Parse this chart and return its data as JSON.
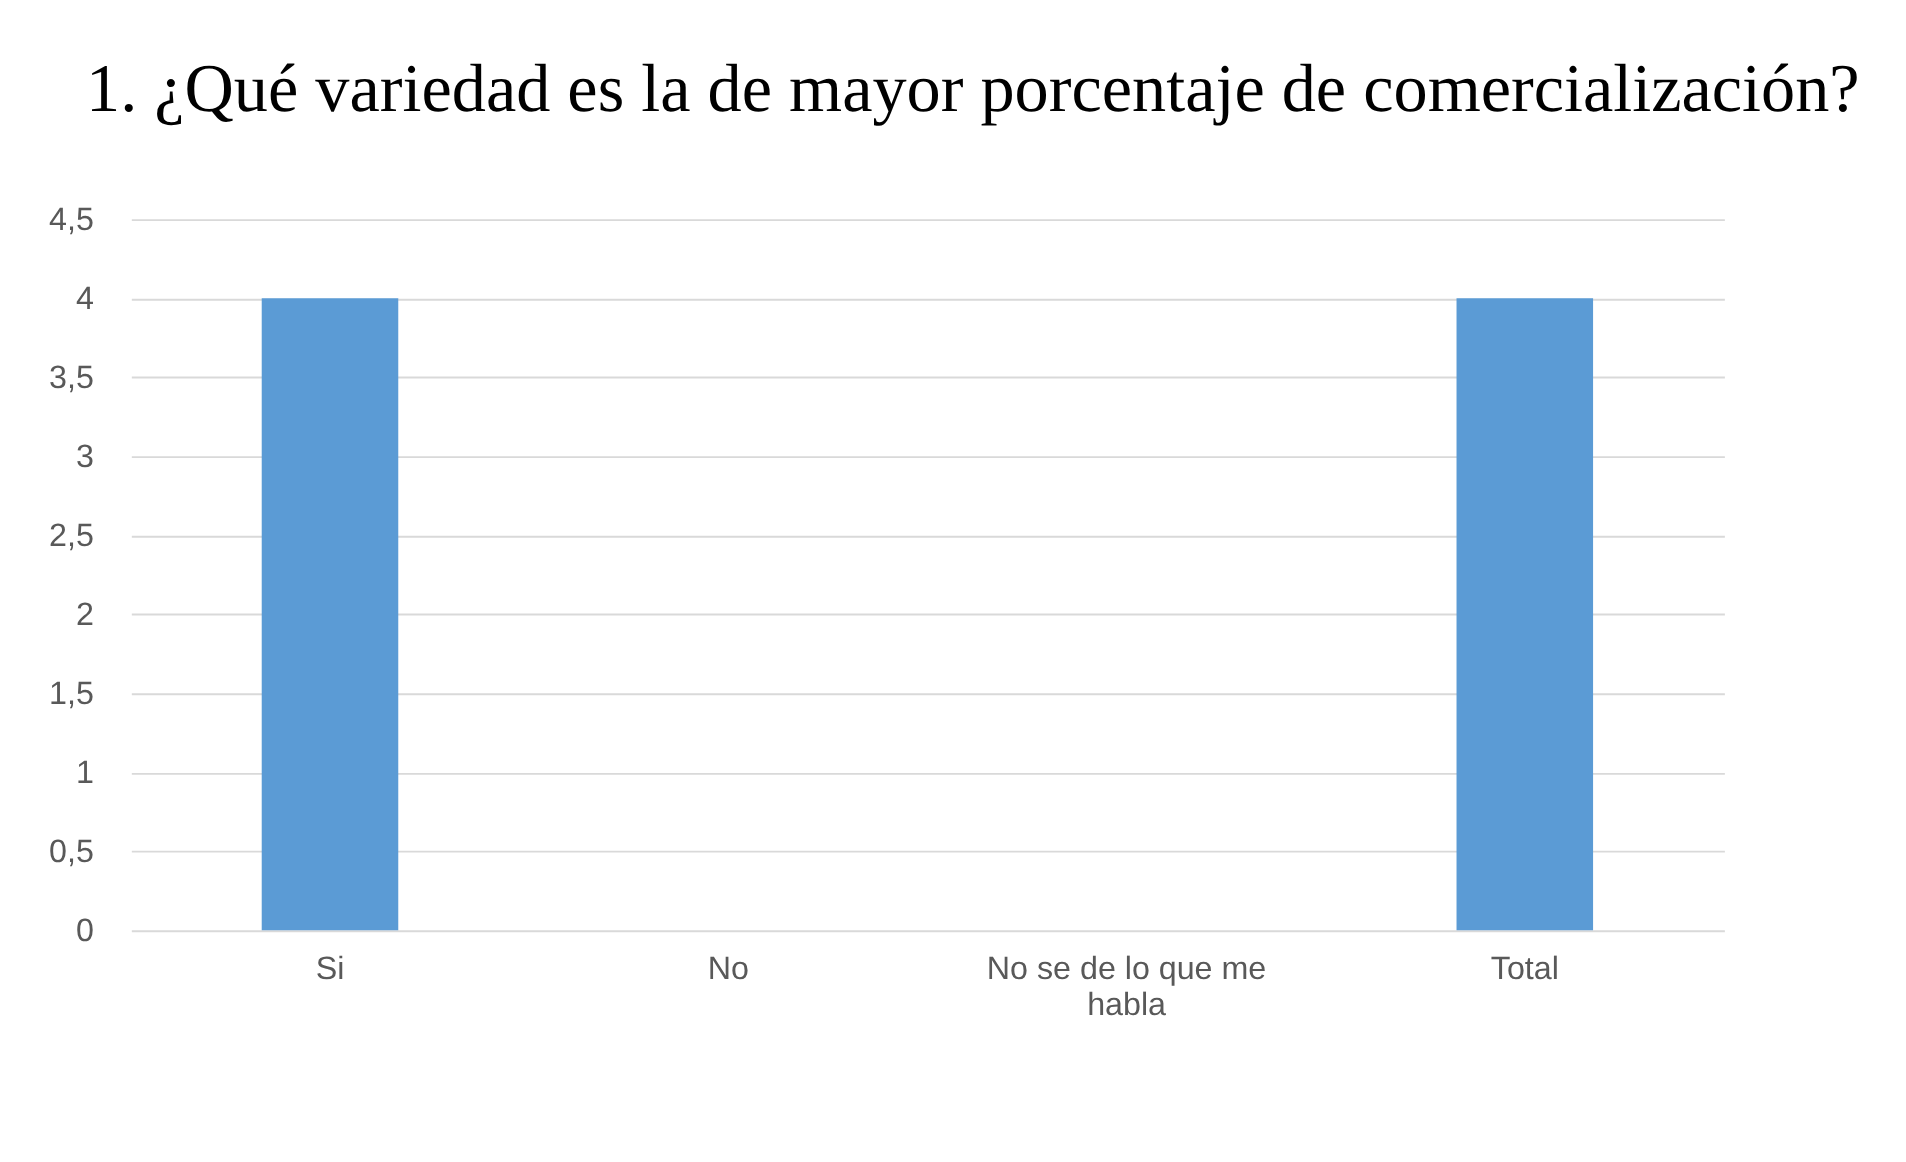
{
  "chart_data": {
    "type": "bar",
    "title": "1.  ¿Qué variedad es la de mayor porcentaje de comercialización?",
    "categories": [
      "Si",
      "No",
      "No se de lo que me habla",
      "Total"
    ],
    "values": [
      4,
      0,
      0,
      4
    ],
    "color": "#5b9bd5",
    "ylim": [
      0,
      4.5
    ],
    "yticks": [
      {
        "value": 0,
        "label": "0"
      },
      {
        "value": 0.5,
        "label": "0,5"
      },
      {
        "value": 1,
        "label": "1"
      },
      {
        "value": 1.5,
        "label": "1,5"
      },
      {
        "value": 2,
        "label": "2"
      },
      {
        "value": 2.5,
        "label": "2,5"
      },
      {
        "value": 3,
        "label": "3"
      },
      {
        "value": 3.5,
        "label": "3,5"
      },
      {
        "value": 4,
        "label": "4"
      },
      {
        "value": 4.5,
        "label": "4,5"
      }
    ],
    "grid": "y"
  }
}
